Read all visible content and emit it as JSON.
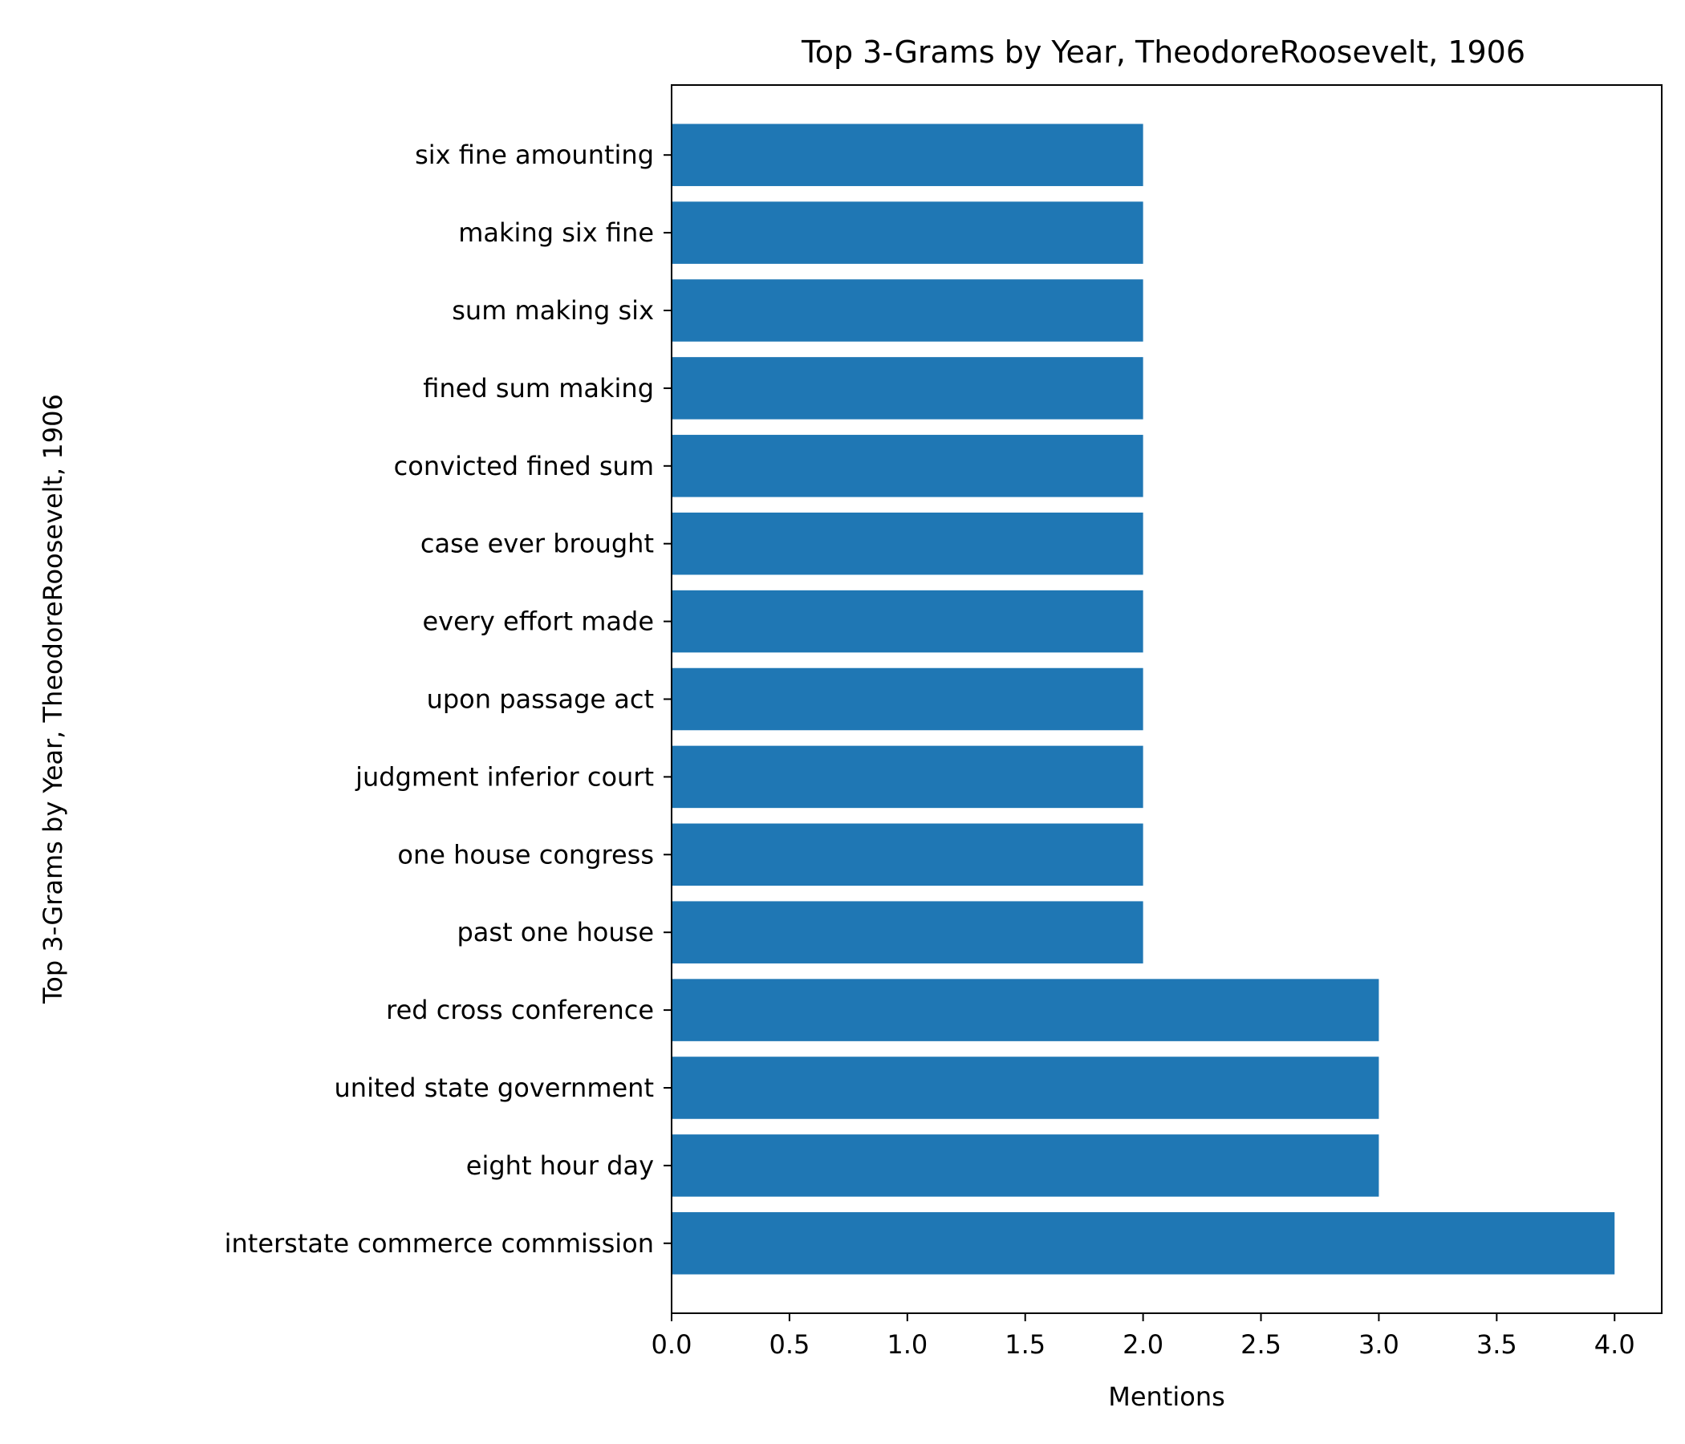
{
  "chart_data": {
    "type": "bar",
    "orientation": "horizontal",
    "title": "Top 3-Grams by Year, TheodoreRoosevelt, 1906",
    "xlabel": "Mentions",
    "ylabel": "Top 3-Grams by Year, TheodoreRoosevelt, 1906",
    "categories": [
      "interstate commerce commission",
      "eight hour day",
      "united state government",
      "red cross conference",
      "past one house",
      "one house congress",
      "judgment inferior court",
      "upon passage act",
      "every effort made",
      "case ever brought",
      "convicted fined sum",
      "fined sum making",
      "sum making six",
      "making six fine",
      "six fine amounting"
    ],
    "values": [
      4,
      3,
      3,
      3,
      2,
      2,
      2,
      2,
      2,
      2,
      2,
      2,
      2,
      2,
      2
    ],
    "xlim": [
      0,
      4.2
    ],
    "xticks": [
      "0.0",
      "0.5",
      "1.0",
      "1.5",
      "2.0",
      "2.5",
      "3.0",
      "3.5",
      "4.0"
    ],
    "bar_color": "#1f77b4",
    "grid": false,
    "legend": "none"
  }
}
